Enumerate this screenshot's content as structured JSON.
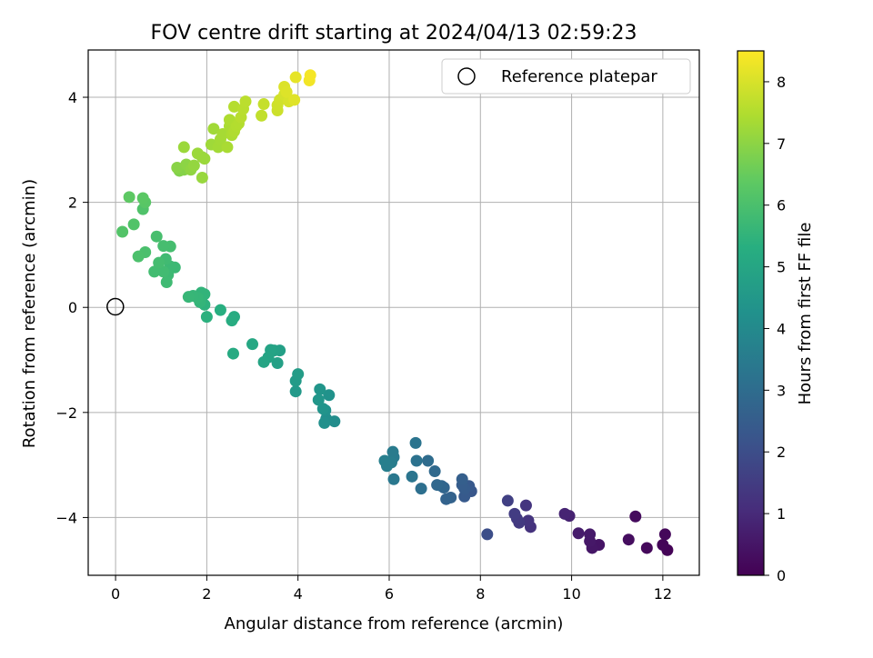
{
  "chart_data": {
    "type": "scatter",
    "title": "FOV centre drift starting at 2024/04/13 02:59:23",
    "xlabel": "Angular distance from reference (arcmin)",
    "ylabel": "Rotation from reference (arcmin)",
    "xlim": [
      -0.6,
      12.8
    ],
    "ylim": [
      -5.1,
      4.9
    ],
    "xticks": [
      0,
      2,
      4,
      6,
      8,
      10,
      12
    ],
    "yticks": [
      -4,
      -2,
      0,
      2,
      4
    ],
    "xtick_labels": [
      "0",
      "2",
      "4",
      "6",
      "8",
      "10",
      "12"
    ],
    "ytick_labels": [
      "−4",
      "−2",
      "0",
      "2",
      "4"
    ],
    "grid": true,
    "colormap": "viridis",
    "colorbar": {
      "label": "Hours from first FF file",
      "range": [
        0,
        8.5
      ],
      "ticks": [
        0,
        1,
        2,
        3,
        4,
        5,
        6,
        7,
        8
      ],
      "tick_labels": [
        "0",
        "1",
        "2",
        "3",
        "4",
        "5",
        "6",
        "7",
        "8"
      ]
    },
    "legend": {
      "location": "top-right",
      "entries": [
        "Reference platepar"
      ]
    },
    "reference_point": {
      "x": 0,
      "y": 0
    },
    "points": [
      [
        12.1,
        -4.62,
        0.05
      ],
      [
        12.0,
        -4.52,
        0.1
      ],
      [
        12.05,
        -4.32,
        0.15
      ],
      [
        11.65,
        -4.58,
        0.2
      ],
      [
        11.4,
        -3.98,
        0.25
      ],
      [
        11.25,
        -4.42,
        0.3
      ],
      [
        10.6,
        -4.52,
        0.45
      ],
      [
        10.45,
        -4.58,
        0.5
      ],
      [
        10.4,
        -4.45,
        0.55
      ],
      [
        10.4,
        -4.32,
        0.6
      ],
      [
        10.15,
        -4.3,
        0.65
      ],
      [
        9.95,
        -3.97,
        0.8
      ],
      [
        9.85,
        -3.93,
        0.85
      ],
      [
        9.1,
        -4.18,
        1.2
      ],
      [
        9.05,
        -4.06,
        1.25
      ],
      [
        9.0,
        -3.77,
        1.3
      ],
      [
        8.85,
        -4.1,
        1.4
      ],
      [
        8.8,
        -4.02,
        1.45
      ],
      [
        8.75,
        -3.93,
        1.5
      ],
      [
        8.6,
        -3.68,
        1.6
      ],
      [
        8.15,
        -4.32,
        2.0
      ],
      [
        7.8,
        -3.5,
        2.3
      ],
      [
        7.75,
        -3.4,
        2.35
      ],
      [
        7.65,
        -3.6,
        2.4
      ],
      [
        7.65,
        -3.45,
        2.45
      ],
      [
        7.6,
        -3.38,
        2.5
      ],
      [
        7.6,
        -3.27,
        2.55
      ],
      [
        7.35,
        -3.62,
        2.65
      ],
      [
        7.25,
        -3.65,
        2.7
      ],
      [
        7.2,
        -3.43,
        2.75
      ],
      [
        7.15,
        -3.4,
        2.8
      ],
      [
        7.05,
        -3.38,
        2.85
      ],
      [
        7.0,
        -3.12,
        2.9
      ],
      [
        6.85,
        -2.92,
        3.0
      ],
      [
        6.7,
        -3.45,
        3.1
      ],
      [
        6.6,
        -2.92,
        3.2
      ],
      [
        6.58,
        -2.58,
        3.25
      ],
      [
        6.5,
        -3.22,
        3.3
      ],
      [
        6.1,
        -3.27,
        3.4
      ],
      [
        6.1,
        -2.85,
        3.45
      ],
      [
        6.08,
        -2.75,
        3.5
      ],
      [
        6.05,
        -2.95,
        3.55
      ],
      [
        5.95,
        -3.02,
        3.6
      ],
      [
        5.9,
        -2.92,
        3.65
      ],
      [
        4.8,
        -2.17,
        4.1
      ],
      [
        4.62,
        -2.12,
        4.15
      ],
      [
        4.58,
        -2.2,
        4.2
      ],
      [
        4.6,
        -1.96,
        4.25
      ],
      [
        4.68,
        -1.67,
        4.3
      ],
      [
        4.55,
        -1.93,
        4.35
      ],
      [
        4.48,
        -1.56,
        4.4
      ],
      [
        4.45,
        -1.76,
        4.45
      ],
      [
        3.95,
        -1.6,
        4.55
      ],
      [
        3.95,
        -1.4,
        4.6
      ],
      [
        4.0,
        -1.27,
        4.65
      ],
      [
        3.6,
        -0.82,
        4.75
      ],
      [
        3.55,
        -1.06,
        4.8
      ],
      [
        3.48,
        -0.82,
        4.85
      ],
      [
        3.4,
        -0.81,
        4.9
      ],
      [
        3.35,
        -0.95,
        4.92
      ],
      [
        3.25,
        -1.04,
        4.95
      ],
      [
        3.0,
        -0.7,
        5.05
      ],
      [
        2.58,
        -0.88,
        5.15
      ],
      [
        2.6,
        -0.18,
        5.2
      ],
      [
        2.55,
        -0.25,
        5.25
      ],
      [
        2.3,
        -0.05,
        5.3
      ],
      [
        2.0,
        -0.18,
        5.4
      ],
      [
        1.95,
        0.05,
        5.45
      ],
      [
        1.95,
        0.25,
        5.5
      ],
      [
        1.88,
        0.28,
        5.52
      ],
      [
        1.85,
        0.1,
        5.55
      ],
      [
        1.8,
        0.18,
        5.58
      ],
      [
        1.7,
        0.22,
        5.6
      ],
      [
        1.6,
        0.2,
        5.62
      ],
      [
        1.3,
        0.76,
        5.7
      ],
      [
        1.2,
        0.78,
        5.72
      ],
      [
        1.15,
        0.62,
        5.75
      ],
      [
        1.12,
        0.48,
        5.78
      ],
      [
        1.1,
        0.92,
        5.8
      ],
      [
        1.05,
        0.68,
        5.82
      ],
      [
        0.85,
        0.68,
        5.85
      ],
      [
        0.95,
        0.85,
        5.88
      ],
      [
        1.2,
        1.16,
        5.9
      ],
      [
        1.05,
        1.17,
        5.92
      ],
      [
        0.9,
        1.35,
        5.95
      ],
      [
        0.65,
        1.05,
        6.0
      ],
      [
        0.5,
        0.97,
        6.02
      ],
      [
        0.6,
        1.87,
        6.1
      ],
      [
        0.4,
        1.58,
        6.12
      ],
      [
        0.15,
        1.44,
        6.15
      ],
      [
        0.65,
        2.0,
        6.25
      ],
      [
        0.6,
        2.08,
        6.3
      ],
      [
        0.3,
        2.1,
        6.35
      ],
      [
        1.4,
        2.6,
        6.85
      ],
      [
        1.5,
        2.62,
        6.9
      ],
      [
        1.35,
        2.66,
        6.95
      ],
      [
        1.55,
        2.72,
        7.0
      ],
      [
        1.65,
        2.62,
        7.05
      ],
      [
        1.72,
        2.7,
        7.1
      ],
      [
        1.9,
        2.47,
        7.15
      ],
      [
        1.9,
        2.86,
        7.15
      ],
      [
        1.8,
        2.93,
        7.2
      ],
      [
        1.95,
        2.83,
        7.2
      ],
      [
        1.5,
        3.05,
        7.2
      ],
      [
        2.1,
        3.1,
        7.25
      ],
      [
        2.15,
        3.4,
        7.28
      ],
      [
        2.25,
        3.05,
        7.3
      ],
      [
        2.3,
        3.2,
        7.32
      ],
      [
        2.35,
        3.3,
        7.35
      ],
      [
        2.45,
        3.05,
        7.38
      ],
      [
        2.5,
        3.45,
        7.4
      ],
      [
        2.55,
        3.28,
        7.42
      ],
      [
        2.5,
        3.57,
        7.45
      ],
      [
        2.6,
        3.35,
        7.48
      ],
      [
        2.65,
        3.45,
        7.5
      ],
      [
        2.7,
        3.5,
        7.52
      ],
      [
        2.6,
        3.82,
        7.55
      ],
      [
        2.75,
        3.62,
        7.58
      ],
      [
        2.8,
        3.78,
        7.6
      ],
      [
        2.85,
        3.92,
        7.62
      ],
      [
        3.2,
        3.65,
        7.7
      ],
      [
        3.25,
        3.87,
        7.75
      ],
      [
        3.55,
        3.75,
        7.85
      ],
      [
        3.55,
        3.85,
        7.88
      ],
      [
        3.6,
        3.95,
        7.9
      ],
      [
        3.7,
        4.05,
        7.95
      ],
      [
        3.8,
        3.92,
        8.0
      ],
      [
        3.7,
        4.2,
        8.05
      ],
      [
        3.75,
        4.1,
        8.08
      ],
      [
        3.92,
        3.95,
        8.1
      ],
      [
        3.95,
        4.38,
        8.2
      ],
      [
        4.25,
        4.32,
        8.35
      ],
      [
        4.27,
        4.42,
        8.4
      ]
    ]
  }
}
